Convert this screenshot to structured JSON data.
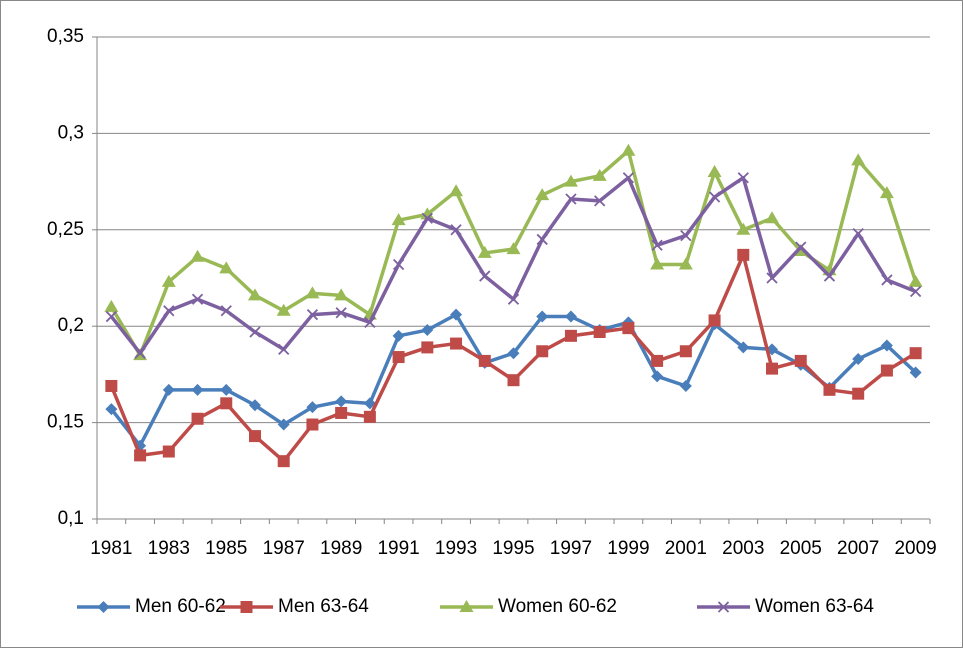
{
  "chart_data": {
    "type": "line",
    "categories": [
      "1981",
      null,
      "1983",
      null,
      "1985",
      null,
      "1987",
      null,
      "1989",
      null,
      "1991",
      null,
      "1993",
      null,
      "1995",
      null,
      "1997",
      null,
      "1999",
      null,
      "2001",
      null,
      "2003",
      null,
      "2005",
      null,
      "2007",
      null,
      "2009"
    ],
    "series": [
      {
        "name": "Men 60-62",
        "color": "#4a7ebb",
        "marker": "diamond",
        "values": [
          0.157,
          0.138,
          0.167,
          0.167,
          0.167,
          0.159,
          0.149,
          0.158,
          0.161,
          0.16,
          0.195,
          0.198,
          0.206,
          0.181,
          0.186,
          0.205,
          0.205,
          0.198,
          0.202,
          0.174,
          0.169,
          0.201,
          0.189,
          0.188,
          0.18,
          0.168,
          0.183,
          0.19,
          0.176
        ]
      },
      {
        "name": "Men 63-64",
        "color": "#be4b48",
        "marker": "square",
        "values": [
          0.169,
          0.133,
          0.135,
          0.152,
          0.16,
          0.143,
          0.13,
          0.149,
          0.155,
          0.153,
          0.184,
          0.189,
          0.191,
          0.182,
          0.172,
          0.187,
          0.195,
          0.197,
          0.199,
          0.182,
          0.187,
          0.203,
          0.237,
          0.178,
          0.182,
          0.167,
          0.165,
          0.177,
          0.186
        ]
      },
      {
        "name": "Women 60-62",
        "color": "#98b954",
        "marker": "triangle",
        "values": [
          0.21,
          0.185,
          0.223,
          0.236,
          0.23,
          0.216,
          0.208,
          0.217,
          0.216,
          0.206,
          0.255,
          0.258,
          0.27,
          0.238,
          0.24,
          0.268,
          0.275,
          0.278,
          0.291,
          0.232,
          0.232,
          0.28,
          0.25,
          0.256,
          0.239,
          0.229,
          0.286,
          0.269,
          0.223
        ]
      },
      {
        "name": "Women 63-64",
        "color": "#7d60a0",
        "marker": "x",
        "values": [
          0.205,
          0.186,
          0.208,
          0.214,
          0.208,
          0.197,
          0.188,
          0.206,
          0.207,
          0.202,
          0.232,
          0.256,
          0.25,
          0.226,
          0.214,
          0.245,
          0.266,
          0.265,
          0.277,
          0.242,
          0.247,
          0.267,
          0.277,
          0.225,
          0.241,
          0.226,
          0.248,
          0.224,
          0.218
        ]
      }
    ],
    "ylim": [
      0.1,
      0.35
    ],
    "yticks": [
      {
        "value": 0.1,
        "label": "0,1"
      },
      {
        "value": 0.15,
        "label": "0,15"
      },
      {
        "value": 0.2,
        "label": "0,2"
      },
      {
        "value": 0.25,
        "label": "0,25"
      },
      {
        "value": 0.3,
        "label": "0,3"
      },
      {
        "value": 0.35,
        "label": "0,35"
      }
    ],
    "grid": true,
    "legend": "bottom"
  }
}
